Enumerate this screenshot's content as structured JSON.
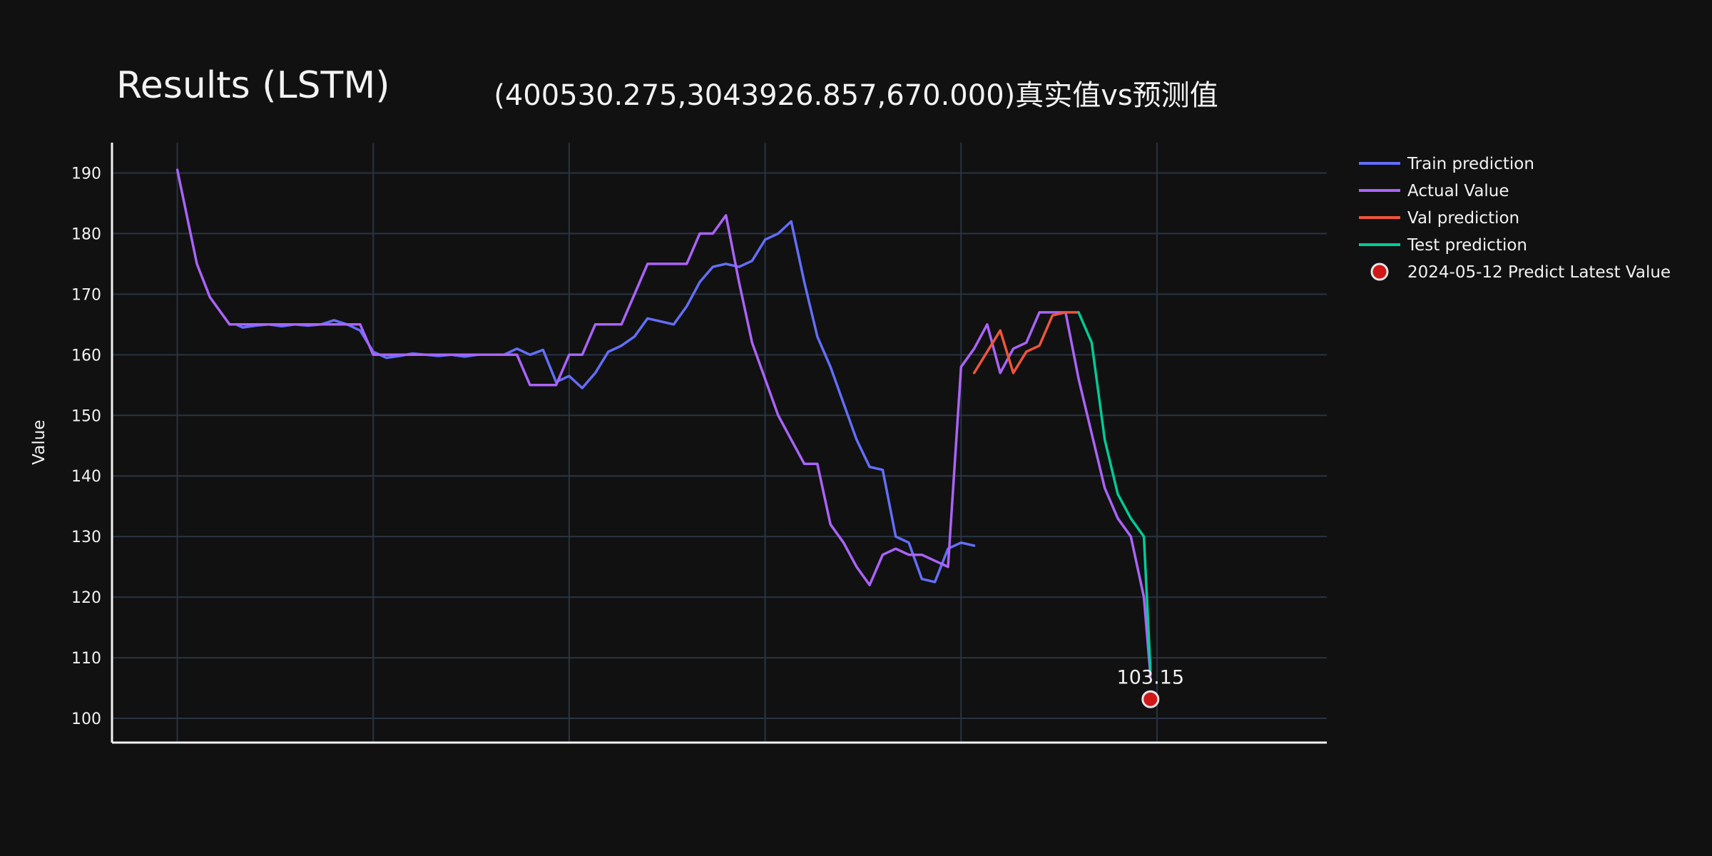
{
  "chart_data": {
    "type": "line",
    "title": "Results (LSTM)",
    "subtitle": "(400530.275,3043926.857,670.000)真实值vs预测值",
    "ylabel": "Value",
    "xlabel": "",
    "ylim": [
      96,
      195
    ],
    "xlim": [
      -10,
      176
    ],
    "y_ticks": [
      100,
      110,
      120,
      130,
      140,
      150,
      160,
      170,
      180,
      190
    ],
    "x_gridlines": [
      0,
      30,
      60,
      90,
      120,
      150
    ],
    "grid": true,
    "legend_position": "right",
    "annotation": {
      "text": "103.15",
      "x": 149,
      "y": 103.15
    },
    "series": [
      {
        "name": "Train prediction",
        "color": "#636efa",
        "x": [
          9,
          10,
          12,
          14,
          16,
          18,
          20,
          22,
          24,
          26,
          28,
          30,
          32,
          34,
          36,
          38,
          40,
          42,
          44,
          46,
          48,
          50,
          52,
          54,
          56,
          58,
          60,
          62,
          64,
          66,
          68,
          70,
          72,
          74,
          76,
          78,
          80,
          82,
          84,
          86,
          88,
          90,
          92,
          94,
          96,
          98,
          100,
          102,
          104,
          106,
          108,
          110,
          112,
          114,
          116,
          118,
          120,
          122
        ],
        "y": [
          165,
          164.5,
          164.8,
          165,
          164.7,
          165,
          164.8,
          165,
          165.7,
          165,
          164,
          160.5,
          159.5,
          159.8,
          160.2,
          160,
          159.8,
          160,
          159.7,
          160,
          160,
          160,
          161,
          160,
          160.8,
          155.5,
          156.5,
          154.5,
          157,
          160.5,
          161.5,
          163,
          166,
          165.5,
          165,
          168,
          172,
          174.5,
          175,
          174.5,
          175.5,
          179,
          180,
          182,
          172,
          163,
          158,
          152,
          146,
          141.5,
          141,
          130,
          129,
          123,
          122.5,
          128,
          129,
          128.5
        ]
      },
      {
        "name": "Actual Value",
        "color": "#ab63fa",
        "x": [
          0,
          3,
          5,
          8,
          9,
          10,
          12,
          14,
          16,
          18,
          20,
          22,
          24,
          26,
          28,
          30,
          32,
          34,
          36,
          38,
          40,
          42,
          44,
          46,
          48,
          50,
          52,
          54,
          56,
          58,
          60,
          62,
          64,
          66,
          68,
          70,
          72,
          74,
          76,
          78,
          80,
          82,
          84,
          86,
          88,
          90,
          92,
          94,
          96,
          98,
          100,
          102,
          104,
          106,
          108,
          110,
          112,
          114,
          116,
          118,
          120,
          122,
          124,
          126,
          128,
          130,
          132,
          134,
          136,
          138,
          140,
          142,
          144,
          146,
          148,
          149
        ],
        "y": [
          190.5,
          175,
          169.5,
          165,
          165,
          165,
          165,
          165,
          165,
          165,
          165,
          165,
          165,
          165,
          165,
          160,
          160,
          160,
          160,
          160,
          160,
          160,
          160,
          160,
          160,
          160,
          160,
          155,
          155,
          155,
          160,
          160,
          165,
          165,
          165,
          170,
          175,
          175,
          175,
          175,
          180,
          180,
          183,
          172,
          162,
          156,
          150,
          146,
          142,
          142,
          132,
          129,
          125,
          122,
          127,
          128,
          127,
          127,
          126,
          125,
          158,
          161,
          165,
          157,
          161,
          162,
          167,
          167,
          167,
          156,
          147,
          138,
          133,
          130,
          120,
          107
        ]
      },
      {
        "name": "Val prediction",
        "color": "#ef553b",
        "x": [
          122,
          124,
          126,
          128,
          130,
          132,
          134,
          136,
          138
        ],
        "y": [
          157,
          160.5,
          164,
          157,
          160.5,
          161.5,
          166.5,
          167,
          167
        ]
      },
      {
        "name": "Test prediction",
        "color": "#00cc96",
        "x": [
          138,
          140,
          142,
          144,
          146,
          148,
          149
        ],
        "y": [
          167,
          162,
          146,
          137,
          133,
          130,
          108
        ]
      }
    ],
    "predict_marker": {
      "name": "2024-05-12 Predict Latest Value",
      "x": 149,
      "y": 103.15,
      "color": "#d01818"
    }
  }
}
